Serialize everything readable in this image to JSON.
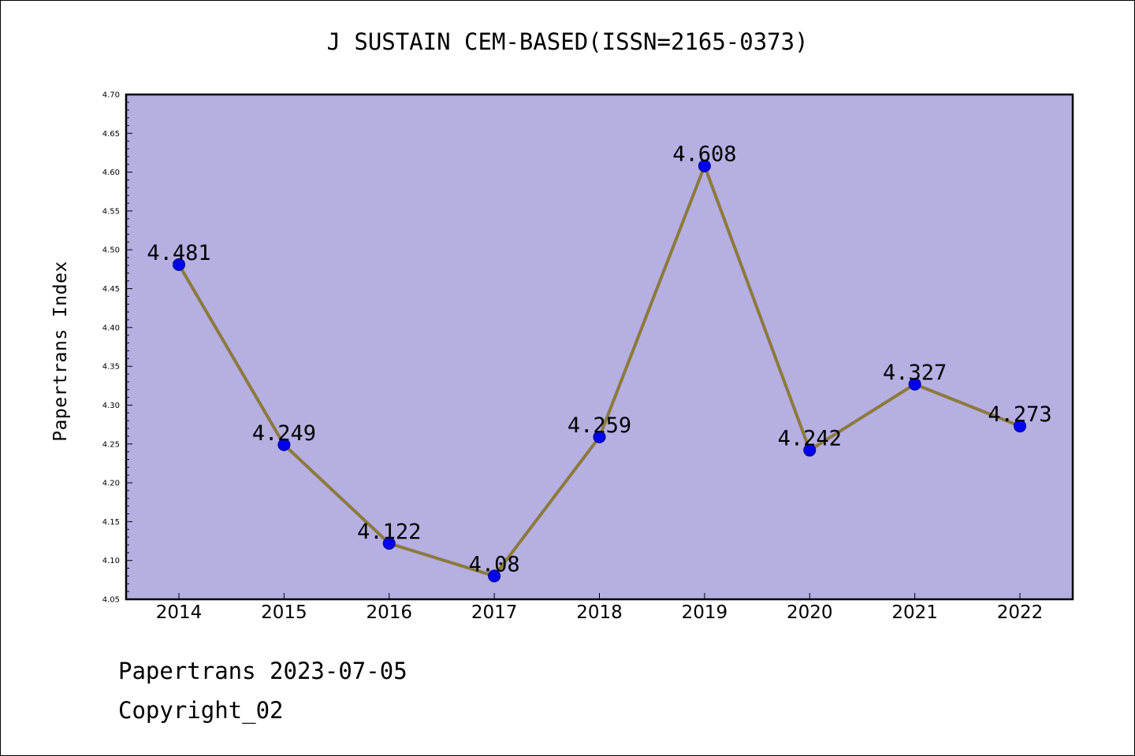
{
  "header": {
    "title": "J SUSTAIN CEM-BASED(ISSN=2165-0373)"
  },
  "footer": {
    "line1": "Papertrans 2023-07-05",
    "line2": "Copyright_02"
  },
  "chart_data": {
    "type": "line",
    "title": "J SUSTAIN CEM-BASED(ISSN=2165-0373)",
    "xlabel": "",
    "ylabel": "Papertrans Index",
    "categories": [
      "2014",
      "2015",
      "2016",
      "2017",
      "2018",
      "2019",
      "2020",
      "2021",
      "2022"
    ],
    "series": [
      {
        "values": [
          4.481,
          4.249,
          4.122,
          4.08,
          4.259,
          4.608,
          4.242,
          4.327,
          4.273
        ],
        "labels": [
          "4.481",
          "4.249",
          "4.122",
          "4.08",
          "4.259",
          "4.608",
          "4.242",
          "4.327",
          "4.273"
        ]
      }
    ],
    "ylim": [
      4.05,
      4.7
    ],
    "yticks": [
      "4.05",
      "4.10",
      "4.15",
      "4.20",
      "4.25",
      "4.30",
      "4.35",
      "4.40",
      "4.45",
      "4.50",
      "4.55",
      "4.60",
      "4.65",
      "4.70"
    ],
    "grid": false,
    "colors": {
      "plot_bg": "#b5afe2",
      "line": "#8b7a3c",
      "marker": "#0000ee"
    }
  }
}
